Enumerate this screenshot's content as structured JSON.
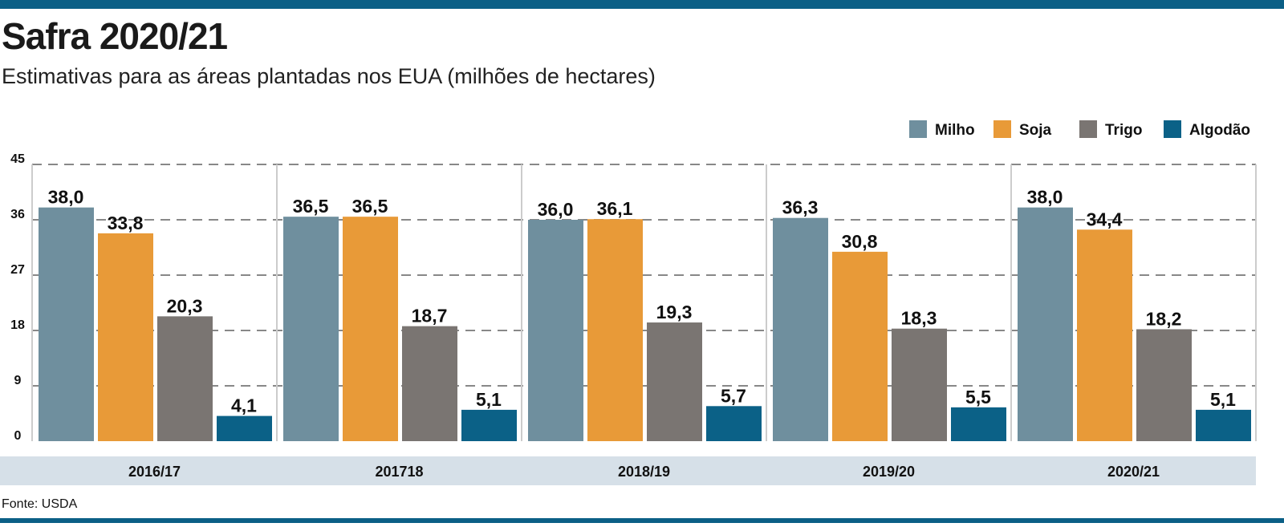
{
  "title": "Safra 2020/21",
  "subtitle": "Estimativas para as áreas plantadas nos EUA (milhões de hectares)",
  "source": "Fonte: USDA",
  "chart_data": {
    "type": "bar",
    "categories": [
      "2016/17",
      "201718",
      "2018/19",
      "2019/20",
      "2020/21"
    ],
    "series": [
      {
        "name": "Milho",
        "color": "#6f8f9e",
        "values": [
          38.0,
          36.5,
          36.0,
          36.3,
          38.0
        ],
        "labels": [
          "38,0",
          "36,5",
          "36,0",
          "36,3",
          "38,0"
        ]
      },
      {
        "name": "Soja",
        "color": "#e89a38",
        "values": [
          33.8,
          36.5,
          36.1,
          30.8,
          34.4
        ],
        "labels": [
          "33,8",
          "36,5",
          "36,1",
          "30,8",
          "34,4"
        ]
      },
      {
        "name": "Trigo",
        "color": "#7a7572",
        "values": [
          20.3,
          18.7,
          19.3,
          18.3,
          18.2
        ],
        "labels": [
          "20,3",
          "18,7",
          "19,3",
          "18,3",
          "18,2"
        ]
      },
      {
        "name": "Algodão",
        "color": "#0b6187",
        "values": [
          4.1,
          5.1,
          5.7,
          5.5,
          5.1
        ],
        "labels": [
          "4,1",
          "5,1",
          "5,7",
          "5,5",
          "5,1"
        ]
      }
    ],
    "yticks": [
      0,
      9,
      18,
      27,
      36,
      45
    ],
    "ylim": [
      0,
      45
    ],
    "grid": true,
    "legend": "top-right"
  }
}
